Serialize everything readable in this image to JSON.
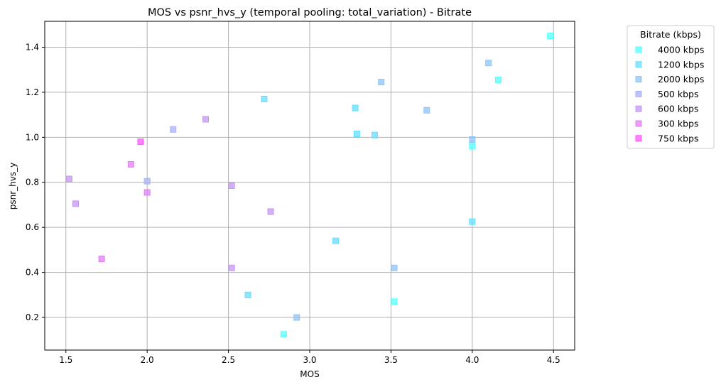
{
  "chart_data": {
    "type": "scatter",
    "title": "MOS vs psnr_hvs_y (temporal pooling: total_variation) - Bitrate",
    "xlabel": "MOS",
    "ylabel": "psnr_hvs_y",
    "xlim": [
      1.37,
      4.63
    ],
    "ylim": [
      0.055,
      1.515
    ],
    "xticks": [
      1.5,
      2.0,
      2.5,
      3.0,
      3.5,
      4.0,
      4.5
    ],
    "xtick_labels": [
      "1.5",
      "2.0",
      "2.5",
      "3.0",
      "3.5",
      "4.0",
      "4.5"
    ],
    "yticks": [
      0.2,
      0.4,
      0.6,
      0.8,
      1.0,
      1.2,
      1.4
    ],
    "ytick_labels": [
      "0.2",
      "0.4",
      "0.6",
      "0.8",
      "1.0",
      "1.2",
      "1.4"
    ],
    "grid": true,
    "marker": "square",
    "legend": {
      "title": "Bitrate (kbps)",
      "placement": "outside-right"
    },
    "series": [
      {
        "name": "4000 kbps",
        "color": "#55ffff",
        "points": [
          [
            4.48,
            1.45
          ],
          [
            4.16,
            1.255
          ],
          [
            4.0,
            0.96
          ],
          [
            3.52,
            0.27
          ],
          [
            2.84,
            0.125
          ]
        ]
      },
      {
        "name": "1200 kbps",
        "color": "#66ddff",
        "points": [
          [
            2.72,
            1.17
          ],
          [
            3.28,
            1.13
          ],
          [
            3.29,
            1.015
          ],
          [
            3.4,
            1.01
          ],
          [
            4.0,
            0.625
          ],
          [
            3.16,
            0.54
          ],
          [
            2.62,
            0.3
          ]
        ]
      },
      {
        "name": "2000 kbps",
        "color": "#8fc4f7",
        "points": [
          [
            4.1,
            1.33
          ],
          [
            3.44,
            1.245
          ],
          [
            3.72,
            1.12
          ],
          [
            4.0,
            0.99
          ],
          [
            3.52,
            0.42
          ],
          [
            2.92,
            0.2
          ]
        ]
      },
      {
        "name": "500 kbps",
        "color": "#aab2f7",
        "points": [
          [
            2.16,
            1.035
          ],
          [
            2.0,
            0.805
          ]
        ]
      },
      {
        "name": "600 kbps",
        "color": "#c496f5",
        "points": [
          [
            2.36,
            1.08
          ],
          [
            1.52,
            0.815
          ],
          [
            2.52,
            0.785
          ],
          [
            1.56,
            0.705
          ],
          [
            2.76,
            0.67
          ],
          [
            2.52,
            0.42
          ]
        ]
      },
      {
        "name": "300 kbps",
        "color": "#e07ff2",
        "points": [
          [
            1.9,
            0.88
          ],
          [
            2.0,
            0.755
          ],
          [
            1.72,
            0.46
          ]
        ]
      },
      {
        "name": "750 kbps",
        "color": "#ff55ff",
        "points": [
          [
            1.96,
            0.98
          ]
        ]
      }
    ]
  }
}
